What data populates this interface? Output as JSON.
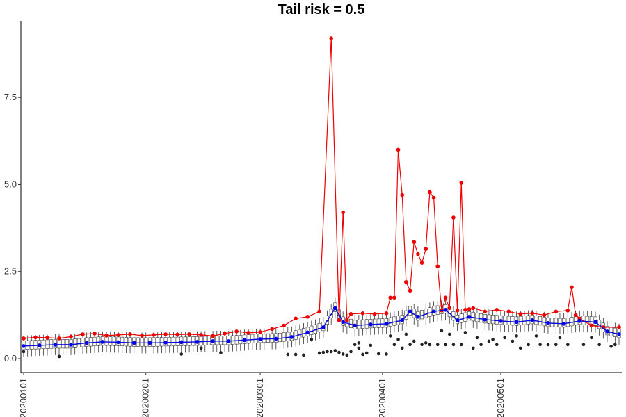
{
  "chart_data": {
    "type": "line",
    "title": "Tail risk = 0.5",
    "xlabel": "",
    "ylabel": "",
    "ylim": [
      -0.4,
      9.7
    ],
    "grid": false,
    "legend": "none",
    "y_ticks": [
      0.0,
      2.5,
      5.0,
      7.5
    ],
    "y_tick_labels": [
      "0.0",
      "2.5",
      "5.0",
      "7.5"
    ],
    "x_start_date": "2020-01-01",
    "x_end_date": "2020-05-31",
    "x_ticks": [
      "2020-01-01",
      "2020-02-01",
      "2020-03-01",
      "2020-04-01",
      "2020-05-01"
    ],
    "x_tick_labels": [
      "20200101",
      "20200201",
      "20200301",
      "20200401",
      "20200501"
    ],
    "colors": {
      "max_series": "#ee0000",
      "median_series": "#0000ee",
      "box": "#333333",
      "outlier": "#222222"
    },
    "series": [
      {
        "role": "max",
        "x": [
          "2020-01-01",
          "2020-01-04",
          "2020-01-07",
          "2020-01-10",
          "2020-01-13",
          "2020-01-16",
          "2020-01-19",
          "2020-01-22",
          "2020-01-25",
          "2020-01-28",
          "2020-01-31",
          "2020-02-03",
          "2020-02-06",
          "2020-02-09",
          "2020-02-12",
          "2020-02-15",
          "2020-02-18",
          "2020-02-21",
          "2020-02-24",
          "2020-02-27",
          "2020-03-01",
          "2020-03-04",
          "2020-03-07",
          "2020-03-10",
          "2020-03-13",
          "2020-03-16",
          "2020-03-19",
          "2020-03-21",
          "2020-03-22",
          "2020-03-23",
          "2020-03-24",
          "2020-03-27",
          "2020-03-30",
          "2020-04-02",
          "2020-04-03",
          "2020-04-04",
          "2020-04-05",
          "2020-04-06",
          "2020-04-07",
          "2020-04-08",
          "2020-04-09",
          "2020-04-10",
          "2020-04-11",
          "2020-04-12",
          "2020-04-13",
          "2020-04-14",
          "2020-04-15",
          "2020-04-16",
          "2020-04-17",
          "2020-04-18",
          "2020-04-19",
          "2020-04-20",
          "2020-04-21",
          "2020-04-22",
          "2020-04-23",
          "2020-04-24",
          "2020-04-27",
          "2020-04-30",
          "2020-05-03",
          "2020-05-06",
          "2020-05-09",
          "2020-05-12",
          "2020-05-15",
          "2020-05-18",
          "2020-05-19",
          "2020-05-20",
          "2020-05-21",
          "2020-05-24",
          "2020-05-27",
          "2020-05-31"
        ],
        "y": [
          0.58,
          0.61,
          0.6,
          0.58,
          0.63,
          0.7,
          0.72,
          0.66,
          0.68,
          0.7,
          0.66,
          0.68,
          0.7,
          0.69,
          0.7,
          0.68,
          0.65,
          0.72,
          0.78,
          0.74,
          0.76,
          0.85,
          0.95,
          1.15,
          1.2,
          1.35,
          9.2,
          1.1,
          4.2,
          1.1,
          1.28,
          1.3,
          1.28,
          1.3,
          1.75,
          1.75,
          6.0,
          4.7,
          2.2,
          1.95,
          3.35,
          3.0,
          2.75,
          3.15,
          4.78,
          4.62,
          2.65,
          1.38,
          1.75,
          1.45,
          4.05,
          1.38,
          5.05,
          1.4,
          1.42,
          1.45,
          1.35,
          1.4,
          1.35,
          1.28,
          1.3,
          1.25,
          1.35,
          1.38,
          2.05,
          1.25,
          1.15,
          0.95,
          0.9,
          0.9
        ]
      },
      {
        "role": "median",
        "x": [
          "2020-01-01",
          "2020-01-05",
          "2020-01-09",
          "2020-01-13",
          "2020-01-17",
          "2020-01-21",
          "2020-01-25",
          "2020-01-29",
          "2020-02-02",
          "2020-02-06",
          "2020-02-10",
          "2020-02-14",
          "2020-02-18",
          "2020-02-22",
          "2020-02-26",
          "2020-03-01",
          "2020-03-05",
          "2020-03-09",
          "2020-03-13",
          "2020-03-17",
          "2020-03-20",
          "2020-03-22",
          "2020-03-25",
          "2020-03-29",
          "2020-04-02",
          "2020-04-06",
          "2020-04-08",
          "2020-04-10",
          "2020-04-14",
          "2020-04-17",
          "2020-04-20",
          "2020-04-23",
          "2020-04-27",
          "2020-05-01",
          "2020-05-05",
          "2020-05-09",
          "2020-05-13",
          "2020-05-17",
          "2020-05-21",
          "2020-05-25",
          "2020-05-28",
          "2020-05-31"
        ],
        "y": [
          0.36,
          0.38,
          0.4,
          0.4,
          0.45,
          0.48,
          0.47,
          0.45,
          0.45,
          0.46,
          0.47,
          0.48,
          0.5,
          0.5,
          0.53,
          0.56,
          0.57,
          0.62,
          0.75,
          0.9,
          1.45,
          1.05,
          0.95,
          0.98,
          1.0,
          1.1,
          1.35,
          1.2,
          1.35,
          1.4,
          1.1,
          1.2,
          1.12,
          1.08,
          1.05,
          1.1,
          1.02,
          1.0,
          1.08,
          1.05,
          0.78,
          0.7
        ]
      }
    ],
    "boxes": {
      "start": "2020-01-01",
      "end": "2020-05-31",
      "median_source": "median",
      "q1_offset": -0.1,
      "q3_offset": 0.15,
      "whisker_low_offset": -0.3,
      "whisker_high_offset": 0.3
    },
    "outliers": {
      "x": [
        "2020-01-10",
        "2020-01-01",
        "2020-02-10",
        "2020-02-20",
        "2020-02-15",
        "2020-03-08",
        "2020-03-10",
        "2020-03-12",
        "2020-03-16",
        "2020-03-17",
        "2020-03-18",
        "2020-03-19",
        "2020-03-20",
        "2020-03-21",
        "2020-03-22",
        "2020-03-23",
        "2020-03-24",
        "2020-03-25",
        "2020-03-26",
        "2020-03-27",
        "2020-03-26",
        "2020-03-28",
        "2020-03-29",
        "2020-03-31",
        "2020-04-02",
        "2020-04-04",
        "2020-04-06",
        "2020-04-08",
        "2020-04-09",
        "2020-04-11",
        "2020-04-13",
        "2020-04-15",
        "2020-04-17",
        "2020-04-19",
        "2020-04-21",
        "2020-04-24",
        "2020-04-26",
        "2020-04-28",
        "2020-04-30",
        "2020-05-02",
        "2020-05-04",
        "2020-05-06",
        "2020-05-08",
        "2020-05-11",
        "2020-05-13",
        "2020-05-15",
        "2020-05-18",
        "2020-05-22",
        "2020-05-26",
        "2020-05-29",
        "2020-05-30",
        "2020-04-03",
        "2020-04-05",
        "2020-04-07",
        "2020-04-12",
        "2020-04-16",
        "2020-04-18",
        "2020-04-22",
        "2020-04-25",
        "2020-04-29",
        "2020-05-05",
        "2020-05-10",
        "2020-05-16",
        "2020-05-24",
        "2020-03-14"
      ],
      "y": [
        0.06,
        0.2,
        0.13,
        0.17,
        0.3,
        0.12,
        0.12,
        0.1,
        0.16,
        0.18,
        0.2,
        0.2,
        0.23,
        0.18,
        0.13,
        0.1,
        0.2,
        0.4,
        0.45,
        0.12,
        0.3,
        0.16,
        0.38,
        0.14,
        0.13,
        0.4,
        0.3,
        0.4,
        0.5,
        0.4,
        0.4,
        0.4,
        0.4,
        0.4,
        0.4,
        0.3,
        0.4,
        0.5,
        0.4,
        0.6,
        0.5,
        0.3,
        0.4,
        0.4,
        0.4,
        0.4,
        0.4,
        0.4,
        0.4,
        0.35,
        0.4,
        0.65,
        0.55,
        0.7,
        0.45,
        0.8,
        0.7,
        0.75,
        0.6,
        0.55,
        0.65,
        0.65,
        0.6,
        0.6,
        0.55
      ]
    }
  }
}
